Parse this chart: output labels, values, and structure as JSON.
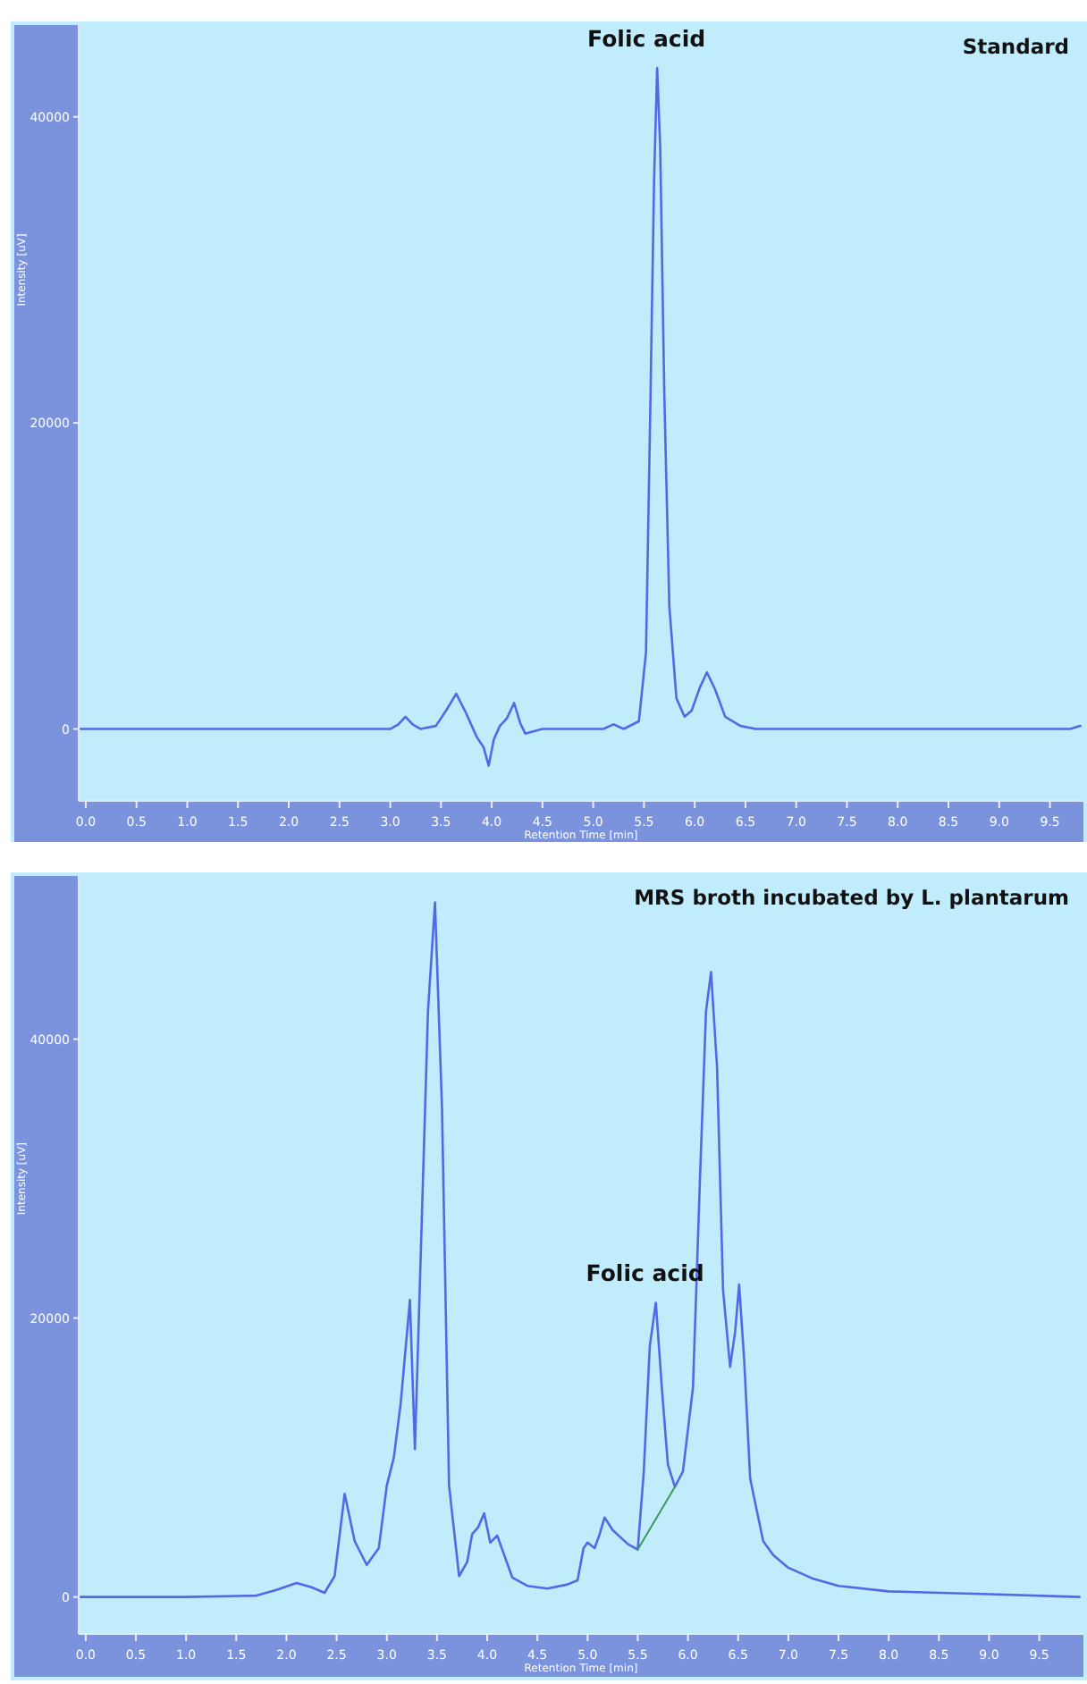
{
  "chart_data": [
    {
      "type": "line",
      "title": "Standard",
      "xlabel": "Retention Time [min]",
      "ylabel": "Intensity [uV]",
      "annotations": [
        {
          "text": "Folic acid",
          "x": 5.63,
          "y": 43200
        }
      ],
      "series": [
        {
          "color": "#5468e6",
          "x": [
            -0.05,
            1.0,
            2.0,
            3.0,
            3.08,
            3.15,
            3.22,
            3.3,
            3.45,
            3.55,
            3.65,
            3.75,
            3.85,
            3.92,
            3.97,
            4.02,
            4.08,
            4.15,
            4.22,
            4.28,
            4.33,
            4.5,
            5.1,
            5.2,
            5.3,
            5.45,
            5.52,
            5.56,
            5.6,
            5.63,
            5.66,
            5.7,
            5.75,
            5.82,
            5.9,
            5.97,
            6.05,
            6.12,
            6.2,
            6.3,
            6.45,
            6.6,
            8.0,
            9.7,
            9.8
          ],
          "values": [
            0,
            0,
            0,
            0,
            300,
            800,
            300,
            0,
            200,
            1200,
            2300,
            1000,
            -500,
            -1200,
            -2400,
            -700,
            200,
            700,
            1700,
            400,
            -300,
            0,
            0,
            300,
            0,
            500,
            5000,
            20000,
            36000,
            43200,
            38000,
            22000,
            8000,
            2000,
            800,
            1200,
            2700,
            3700,
            2600,
            800,
            200,
            0,
            0,
            0,
            200
          ]
        }
      ],
      "xlim": [
        -0.07,
        9.83
      ],
      "ylim": [
        -4700,
        46000
      ],
      "xticks": [
        {
          "value": 0,
          "label": "0.0"
        },
        {
          "value": 0.5,
          "label": "0.5"
        },
        {
          "value": 1,
          "label": "1.0"
        },
        {
          "value": 1.5,
          "label": "1.5"
        },
        {
          "value": 2,
          "label": "2.0"
        },
        {
          "value": 2.5,
          "label": "2.5"
        },
        {
          "value": 3,
          "label": "3.0"
        },
        {
          "value": 3.5,
          "label": "3.5"
        },
        {
          "value": 4,
          "label": "4.0"
        },
        {
          "value": 4.5,
          "label": "4.5"
        },
        {
          "value": 5,
          "label": "5.0"
        },
        {
          "value": 5.5,
          "label": "5.5"
        },
        {
          "value": 6,
          "label": "6.0"
        },
        {
          "value": 6.5,
          "label": "6.5"
        },
        {
          "value": 7,
          "label": "7.0"
        },
        {
          "value": 7.5,
          "label": "7.5"
        },
        {
          "value": 8,
          "label": "8.0"
        },
        {
          "value": 8.5,
          "label": "8.5"
        },
        {
          "value": 9,
          "label": "9.0"
        },
        {
          "value": 9.5,
          "label": "9.5"
        }
      ],
      "yticks": [
        0,
        20000,
        40000
      ],
      "grid": false
    },
    {
      "type": "line",
      "title": "MRS broth incubated by L. plantarum",
      "xlabel": "Retention Time [min]",
      "ylabel": "Intensity [uV]",
      "annotations": [
        {
          "text": "Folic acid",
          "x": 5.68,
          "y": 21100
        }
      ],
      "series": [
        {
          "color": "#5468e6",
          "x": [
            -0.05,
            1.0,
            1.7,
            1.9,
            2.1,
            2.25,
            2.38,
            2.48,
            2.58,
            2.68,
            2.8,
            2.92,
            3.0,
            3.07,
            3.14,
            3.23,
            3.28,
            3.34,
            3.41,
            3.48,
            3.55,
            3.62,
            3.72,
            3.8,
            3.85,
            3.91,
            3.97,
            4.03,
            4.1,
            4.17,
            4.25,
            4.4,
            4.6,
            4.8,
            4.9,
            4.96,
            5.0,
            5.07,
            5.12,
            5.17,
            5.25,
            5.4,
            5.5,
            5.56,
            5.62,
            5.68,
            5.74,
            5.8,
            5.87,
            5.95,
            6.05,
            6.12,
            6.18,
            6.23,
            6.29,
            6.35,
            6.42,
            6.47,
            6.51,
            6.56,
            6.62,
            6.68,
            6.75,
            6.85,
            7.0,
            7.25,
            7.5,
            8.0,
            9.0,
            9.9
          ],
          "values": [
            0,
            0,
            100,
            500,
            1000,
            700,
            300,
            1500,
            7400,
            4000,
            2300,
            3500,
            8000,
            10000,
            14000,
            21300,
            10600,
            25000,
            42000,
            49800,
            35000,
            8000,
            1500,
            2500,
            4500,
            5000,
            6000,
            3900,
            4400,
            3000,
            1400,
            800,
            600,
            900,
            1200,
            3500,
            3900,
            3500,
            4500,
            5700,
            4800,
            3800,
            3400,
            9000,
            18000,
            21100,
            15000,
            9500,
            7900,
            9000,
            15000,
            30000,
            42000,
            44800,
            38000,
            22000,
            16500,
            19000,
            22400,
            17000,
            8500,
            6400,
            4000,
            3000,
            2100,
            1300,
            800,
            400,
            200,
            0
          ]
        },
        {
          "color": "#3a9a5c",
          "x": [
            5.5,
            5.87
          ],
          "values": [
            3400,
            7900
          ]
        }
      ],
      "xlim": [
        -0.07,
        9.94
      ],
      "ylim": [
        -2650,
        51700
      ],
      "xticks": [
        {
          "value": 0,
          "label": "0.0"
        },
        {
          "value": 0.5,
          "label": "0.5"
        },
        {
          "value": 1,
          "label": "1.0"
        },
        {
          "value": 1.5,
          "label": "1.5"
        },
        {
          "value": 2,
          "label": "2.0"
        },
        {
          "value": 2.5,
          "label": "2.5"
        },
        {
          "value": 3,
          "label": "3.0"
        },
        {
          "value": 3.5,
          "label": "3.5"
        },
        {
          "value": 4,
          "label": "4.0"
        },
        {
          "value": 4.5,
          "label": "4.5"
        },
        {
          "value": 5,
          "label": "5.0"
        },
        {
          "value": 5.5,
          "label": "5.5"
        },
        {
          "value": 6,
          "label": "6.0"
        },
        {
          "value": 6.5,
          "label": "6.5"
        },
        {
          "value": 7,
          "label": "7.0"
        },
        {
          "value": 7.5,
          "label": "7.5"
        },
        {
          "value": 8,
          "label": "8.0"
        },
        {
          "value": 8.5,
          "label": "8.5"
        },
        {
          "value": 9,
          "label": "9.0"
        },
        {
          "value": 9.5,
          "label": "9.5"
        }
      ],
      "yticks": [
        0,
        20000,
        40000
      ],
      "grid": false
    }
  ]
}
